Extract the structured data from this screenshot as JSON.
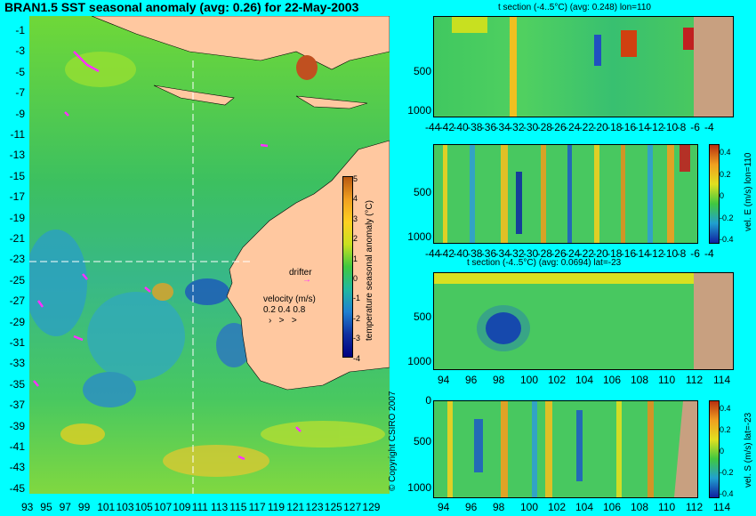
{
  "title": "BRAN1.5 SST seasonal anomaly (avg: 0.26) for 22-May-2003",
  "map": {
    "lat_labels": [
      "-1",
      "-3",
      "-5",
      "-7",
      "-9",
      "-11",
      "-13",
      "-15",
      "-17",
      "-19",
      "-21",
      "-23",
      "-25",
      "-27",
      "-29",
      "-31",
      "-33",
      "-35",
      "-37",
      "-39",
      "-41",
      "-43",
      "-45"
    ],
    "lon_labels": [
      "93",
      "95",
      "97",
      "99",
      "101",
      "103",
      "105",
      "107",
      "109",
      "111",
      "113",
      "115",
      "117",
      "119",
      "121",
      "123",
      "125",
      "127",
      "129"
    ],
    "colorbar_label": "temperature seasonal anomaly (°C)",
    "colorbar_ticks": [
      "5",
      "4",
      "3",
      "2",
      "1",
      "0",
      "-1",
      "-2",
      "-3",
      "-4"
    ],
    "drifter_label": "drifter",
    "velocity_label": "velocity (m/s)",
    "velocity_scale": "0.2 0.4 0.8",
    "copyright": "© Copyright CSIRO 2007"
  },
  "panels": {
    "p1": {
      "title": "t section (-4..5°C) (avg: 0.248) lon=110",
      "y_ticks": [
        "500",
        "1000"
      ],
      "x_ticks": [
        "-44",
        "-42",
        "-40",
        "-38",
        "-36",
        "-34",
        "-32",
        "-30",
        "-28",
        "-26",
        "-24",
        "-22",
        "-20",
        "-18",
        "-16",
        "-14",
        "-12",
        "-10",
        "-8",
        "-6",
        "-4"
      ]
    },
    "p2": {
      "y_ticks": [
        "500",
        "1000"
      ],
      "x_ticks": [
        "-44",
        "-42",
        "-40",
        "-38",
        "-36",
        "-34",
        "-32",
        "-30",
        "-28",
        "-26",
        "-24",
        "-22",
        "-20",
        "-18",
        "-16",
        "-14",
        "-12",
        "-10",
        "-8",
        "-6",
        "-4"
      ],
      "colorbar_label": "vel. E (m/s) lon=110",
      "colorbar_ticks": [
        "0.4",
        "0.2",
        "0",
        "-0.2",
        "-0.4"
      ]
    },
    "p3": {
      "title": "t section (-4..5°C) (avg: 0.0694) lat=-23",
      "y_ticks": [
        "500",
        "1000"
      ],
      "x_ticks": [
        "94",
        "96",
        "98",
        "100",
        "102",
        "104",
        "106",
        "108",
        "110",
        "112",
        "114"
      ]
    },
    "p4": {
      "y_ticks": [
        "0",
        "500",
        "1000"
      ],
      "x_ticks": [
        "94",
        "96",
        "98",
        "100",
        "102",
        "104",
        "106",
        "108",
        "110",
        "112",
        "114"
      ],
      "colorbar_label": "vel. S (m/s) lat=-23",
      "colorbar_ticks": [
        "0.4",
        "0.2",
        "0",
        "-0.2",
        "-0.4"
      ]
    }
  }
}
